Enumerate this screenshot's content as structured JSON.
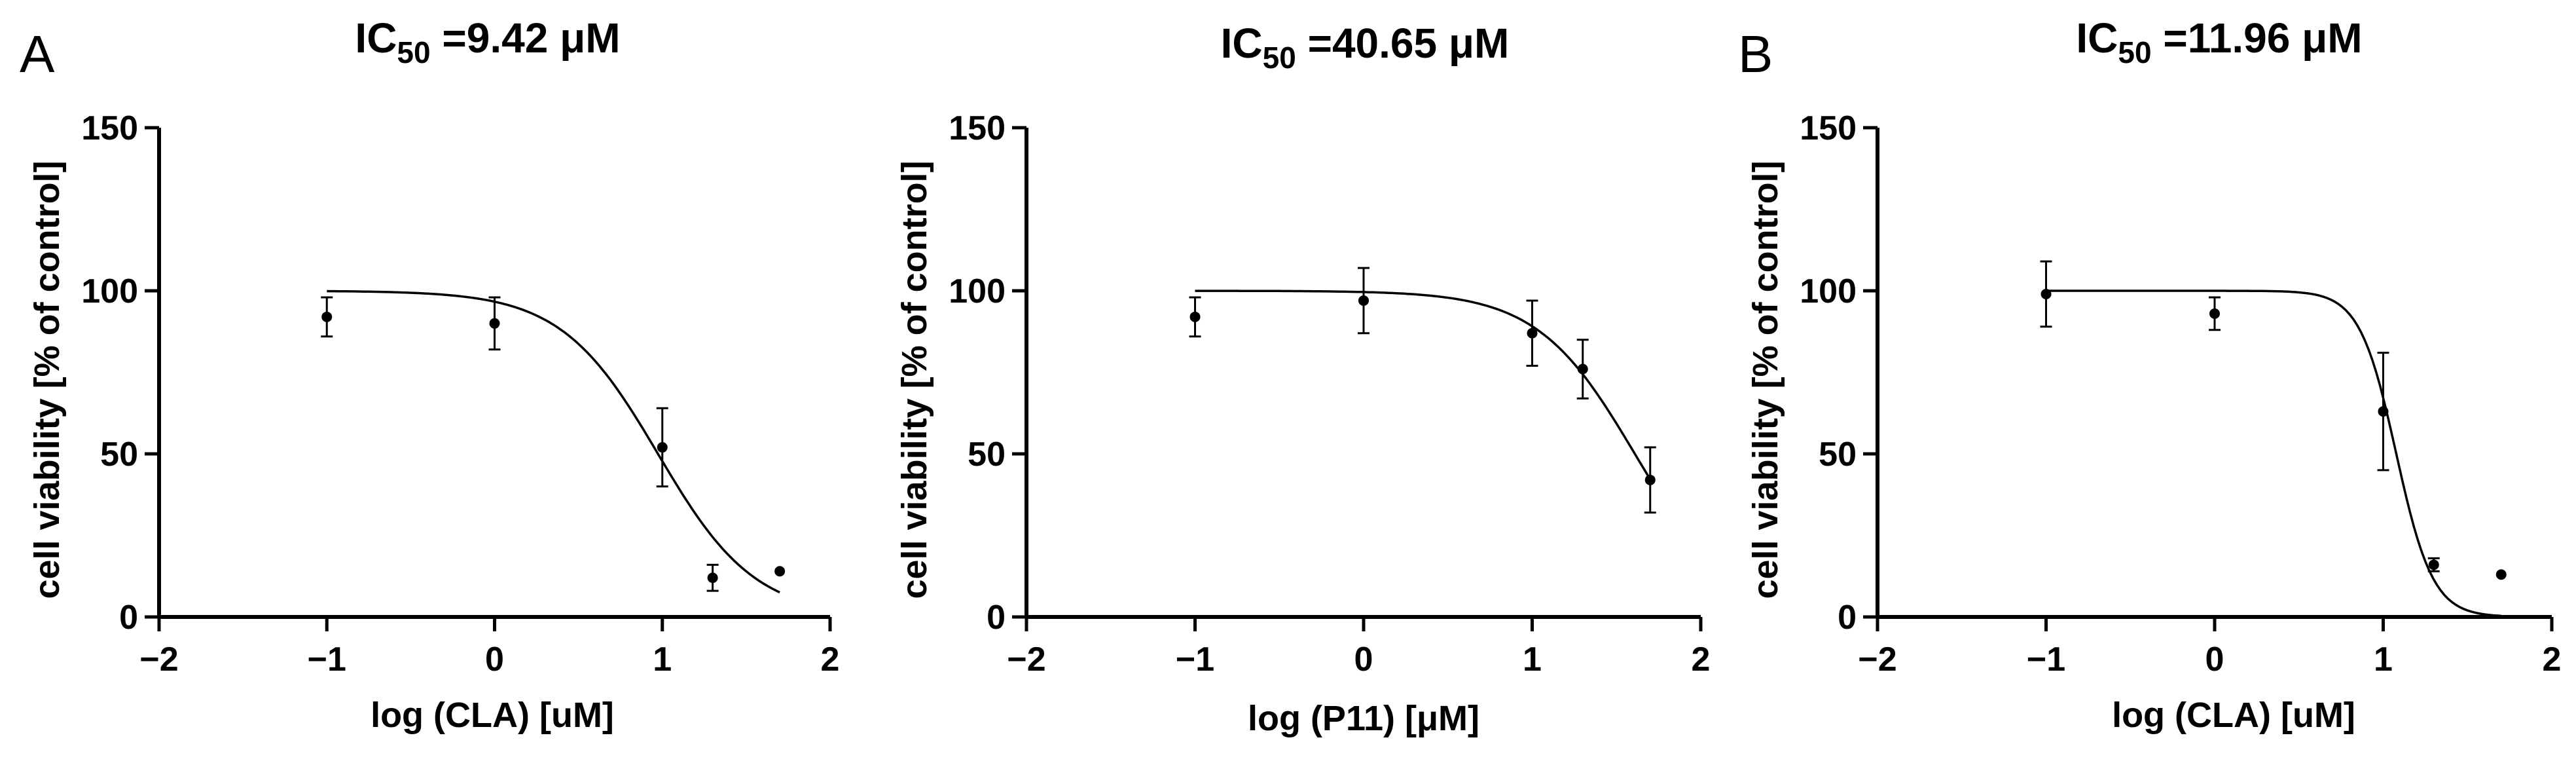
{
  "chart_data": [
    {
      "type": "scatter",
      "panel_label": "A",
      "title_prefix": "IC",
      "title_subscript": "50",
      "title_value": " =9.42 μM",
      "xlabel": "log (CLA) [uM]",
      "ylabel": "cell viability [% of control]",
      "xlim": [
        -2,
        2
      ],
      "ylim": [
        0,
        150
      ],
      "xticks": [
        -2,
        -1,
        0,
        1,
        2
      ],
      "xtick_labels": [
        "−2",
        "−1",
        "0",
        "1",
        "2"
      ],
      "yticks": [
        0,
        50,
        100,
        150
      ],
      "ytick_labels": [
        "0",
        "50",
        "100",
        "150"
      ],
      "points": [
        {
          "x": -1,
          "y": 92,
          "err": 6
        },
        {
          "x": 0,
          "y": 90,
          "err": 8
        },
        {
          "x": 1,
          "y": 52,
          "err": 12
        },
        {
          "x": 1.3,
          "y": 12,
          "err": 4
        },
        {
          "x": 1.7,
          "y": 14,
          "err": 0
        }
      ],
      "fit": {
        "top": 100,
        "bottom": 0,
        "ic50": 9.42,
        "hill": 1.5,
        "x_range": [
          -1,
          1.7
        ]
      }
    },
    {
      "type": "scatter",
      "panel_label": "",
      "title_prefix": "IC",
      "title_subscript": "50",
      "title_value": " =40.65 μM",
      "xlabel": "log (P11) [μM]",
      "ylabel": "cell viability [% of control]",
      "xlim": [
        -2,
        2
      ],
      "ylim": [
        0,
        150
      ],
      "xticks": [
        -2,
        -1,
        0,
        1,
        2
      ],
      "xtick_labels": [
        "−2",
        "−1",
        "0",
        "1",
        "2"
      ],
      "yticks": [
        0,
        50,
        100,
        150
      ],
      "ytick_labels": [
        "0",
        "50",
        "100",
        "150"
      ],
      "points": [
        {
          "x": -1,
          "y": 92,
          "err": 6
        },
        {
          "x": 0,
          "y": 97,
          "err": 10
        },
        {
          "x": 1,
          "y": 87,
          "err": 10
        },
        {
          "x": 1.3,
          "y": 76,
          "err": 9
        },
        {
          "x": 1.7,
          "y": 42,
          "err": 10
        }
      ],
      "fit": {
        "top": 100,
        "bottom": 0,
        "ic50": 40.65,
        "hill": 1.5,
        "x_range": [
          -1,
          1.7
        ]
      }
    },
    {
      "type": "scatter",
      "panel_label": "B",
      "title_prefix": "IC",
      "title_subscript": "50",
      "title_value": " =11.96 μM",
      "xlabel": "log (CLA) [uM]",
      "ylabel": "cell viability [% of control]",
      "xlim": [
        -2,
        2
      ],
      "ylim": [
        0,
        150
      ],
      "xticks": [
        -2,
        -1,
        0,
        1,
        2
      ],
      "xtick_labels": [
        "−2",
        "−1",
        "0",
        "1",
        "2"
      ],
      "yticks": [
        0,
        50,
        100,
        150
      ],
      "ytick_labels": [
        "0",
        "50",
        "100",
        "150"
      ],
      "points": [
        {
          "x": -1,
          "y": 99,
          "err": 10
        },
        {
          "x": 0,
          "y": 93,
          "err": 5
        },
        {
          "x": 1,
          "y": 63,
          "err": 18
        },
        {
          "x": 1.3,
          "y": 16,
          "err": 2
        },
        {
          "x": 1.7,
          "y": 13,
          "err": 0
        }
      ],
      "fit": {
        "top": 100,
        "bottom": 0,
        "ic50": 11.96,
        "hill": 4,
        "x_range": [
          -1,
          1.7
        ]
      }
    }
  ]
}
